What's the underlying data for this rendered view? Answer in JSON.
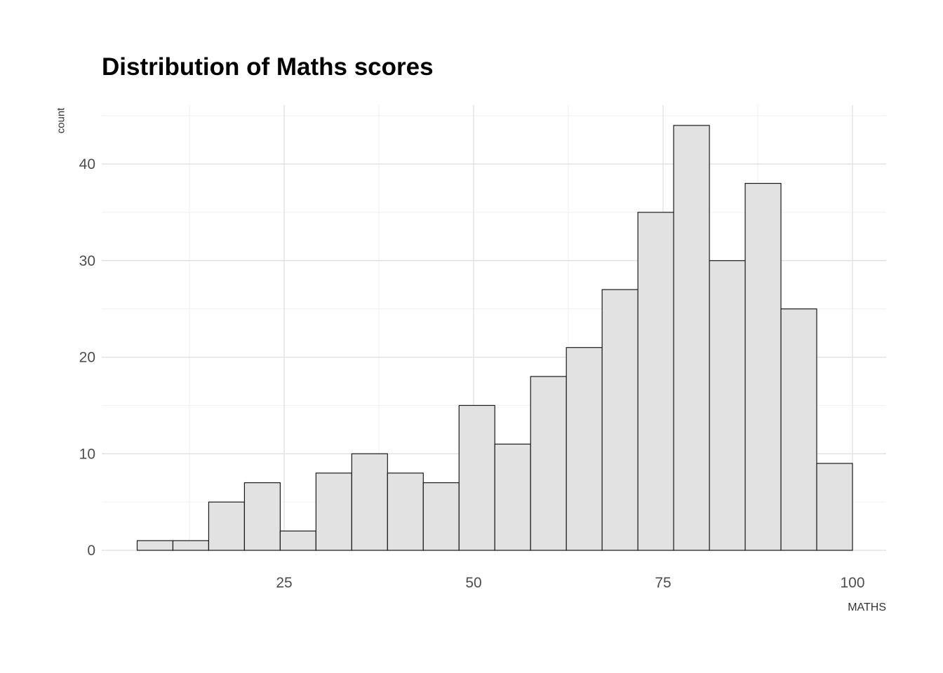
{
  "chart_data": {
    "type": "bar",
    "subtype": "histogram",
    "title": "Distribution of Maths scores",
    "xlabel": "MATHS",
    "ylabel": "count",
    "bin_start": 5.6,
    "bin_width": 4.72,
    "values": [
      1,
      1,
      5,
      7,
      2,
      8,
      10,
      8,
      7,
      15,
      11,
      18,
      21,
      27,
      35,
      44,
      30,
      38,
      25,
      9
    ],
    "x_ticks": [
      25,
      50,
      75,
      100
    ],
    "y_ticks": [
      0,
      10,
      20,
      30,
      40
    ],
    "x_minor_ticks": [
      12.5,
      37.5,
      62.5,
      87.5
    ],
    "y_minor_ticks": [
      5,
      15,
      25,
      35,
      45
    ],
    "xlim": [
      0.93,
      104.44
    ],
    "ylim": [
      0,
      46.1
    ],
    "legend": "none",
    "grid": "on",
    "colors": {
      "bar_fill": "#e2e2e2",
      "bar_stroke": "#1a1a1a",
      "grid_major": "#dedede",
      "grid_minor": "#efefef",
      "tick_label": "#4d4d4d",
      "background": "#ffffff"
    }
  }
}
